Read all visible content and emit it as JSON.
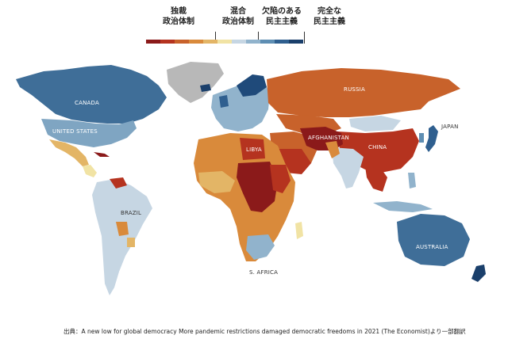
{
  "legend": {
    "categories": [
      {
        "label": "独裁\n政治体制"
      },
      {
        "label": "混合\n政治体制"
      },
      {
        "label": "欠陥のある\n民主主義"
      },
      {
        "label": "完全な\n民主主義"
      }
    ],
    "scale_colors": [
      "#8b1a1a",
      "#b5331f",
      "#c8622b",
      "#d98a3b",
      "#e3b566",
      "#f1e3a4",
      "#c6d6e3",
      "#91b3cc",
      "#5e8eb3",
      "#2f5f8f",
      "#1a3f6b"
    ]
  },
  "colors": {
    "authoritarian_deep": "#8b1a1a",
    "authoritarian": "#b5331f",
    "hybrid_orange": "#c8622b",
    "hybrid_light": "#d98a3b",
    "flawed_light": "#c6d6e3",
    "flawed": "#91b3cc",
    "full": "#2f5f8f",
    "no_data": "#b8b8b8"
  },
  "map": {
    "country_labels": [
      "CANADA",
      "UNITED STATES",
      "BRAZIL",
      "RUSSIA",
      "CHINA",
      "AFGHANISTAN",
      "LIBYA",
      "S. AFRICA",
      "JAPAN",
      "AUSTRALIA"
    ]
  },
  "source": "出典：A new low for global democracy More pandemic restrictions damaged democratic freedoms in 2021 (The Economist)より一部翻訳"
}
